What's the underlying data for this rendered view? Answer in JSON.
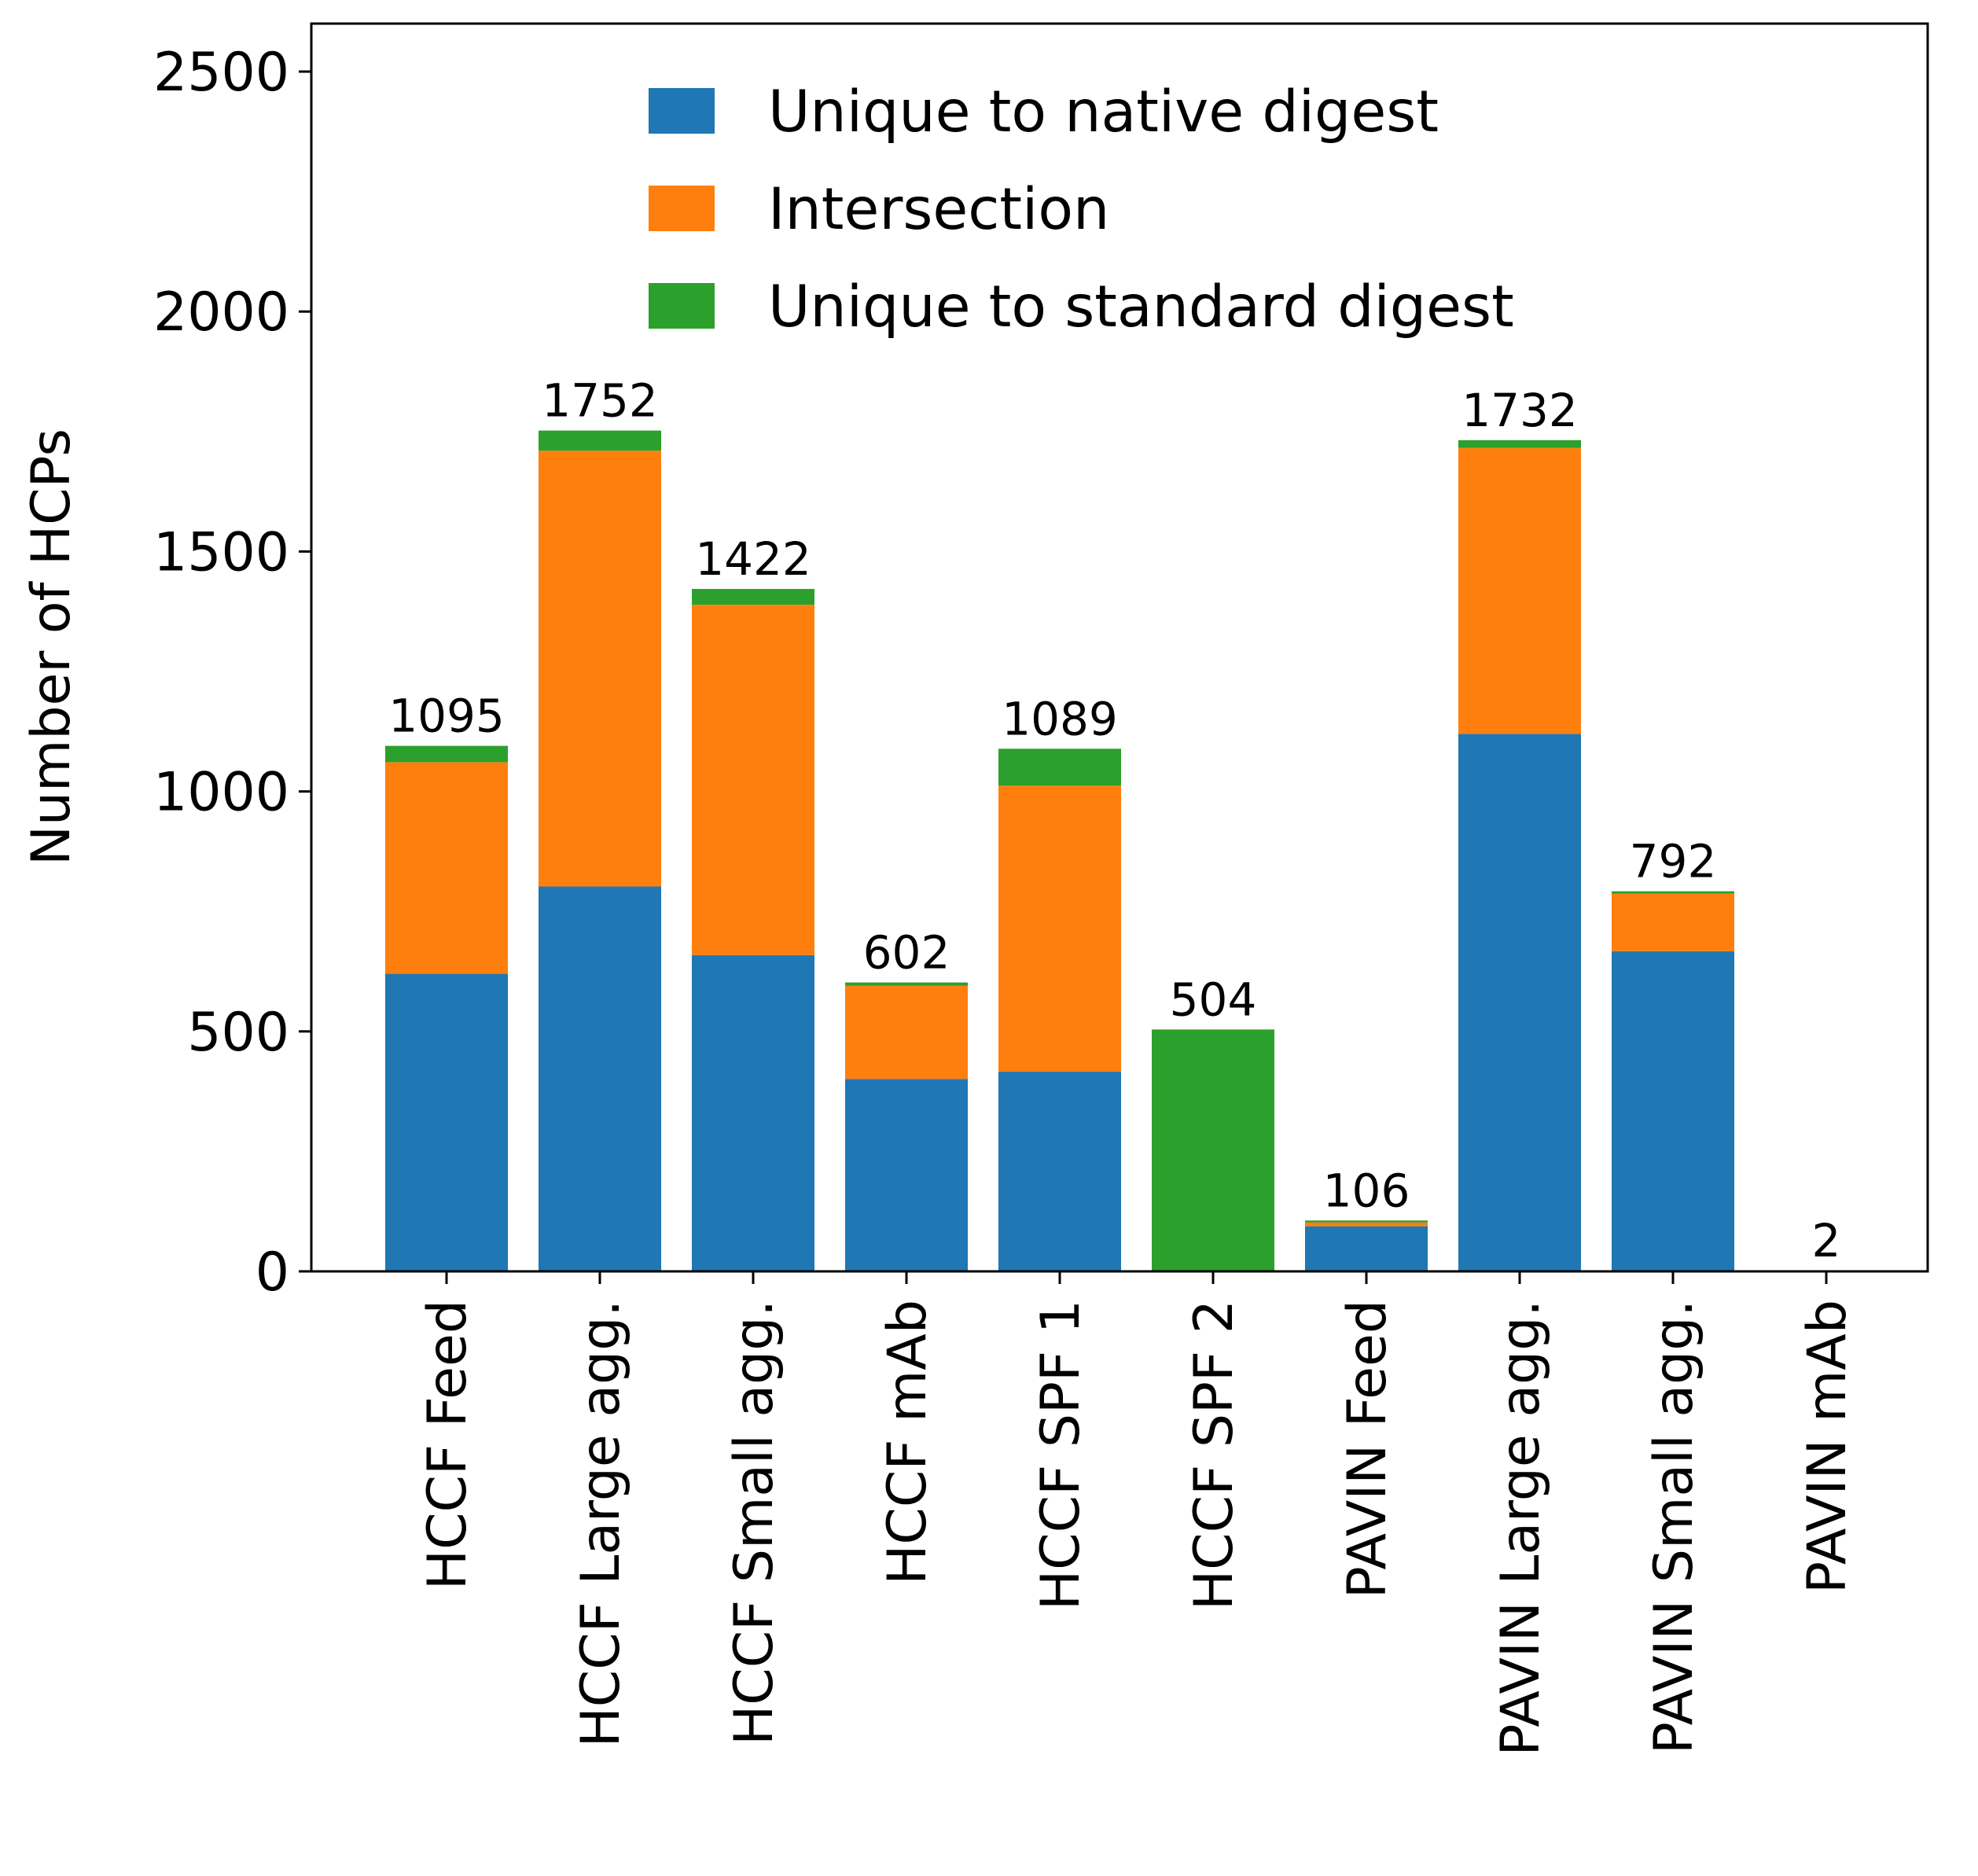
{
  "chart_data": {
    "type": "bar",
    "stacked": true,
    "categories": [
      "HCCF Feed",
      "HCCF Large agg.",
      "HCCF Small agg.",
      "HCCF mAb",
      "HCCF SPF 1",
      "HCCF SPF 2",
      "PAVIN Feed",
      "PAVIN Large agg.",
      "PAVIN Small agg.",
      "PAVIN mAb"
    ],
    "series": [
      {
        "name": "Unique to native digest",
        "color": "#1f77b4",
        "values": [
          620,
          802,
          659,
          401,
          416,
          0,
          94,
          1120,
          667,
          0
        ]
      },
      {
        "name": "Intersection",
        "color": "#ff7f0e",
        "values": [
          441,
          908,
          730,
          194,
          596,
          0,
          8,
          596,
          120,
          0
        ]
      },
      {
        "name": "Unique to standard digest",
        "color": "#2ca02c",
        "values": [
          34,
          42,
          33,
          7,
          77,
          504,
          4,
          16,
          5,
          2
        ]
      }
    ],
    "totals": [
      "1095",
      "1752",
      "1422",
      "602",
      "1089",
      "504",
      "106",
      "1732",
      "792",
      "2"
    ],
    "title": "",
    "xlabel": "",
    "ylabel": "Number of HCPs",
    "ylim": [
      0,
      2600
    ],
    "yticks": [
      "0",
      "500",
      "1000",
      "1500",
      "2000",
      "2500"
    ],
    "grid": false,
    "legend_position": "top-center"
  }
}
